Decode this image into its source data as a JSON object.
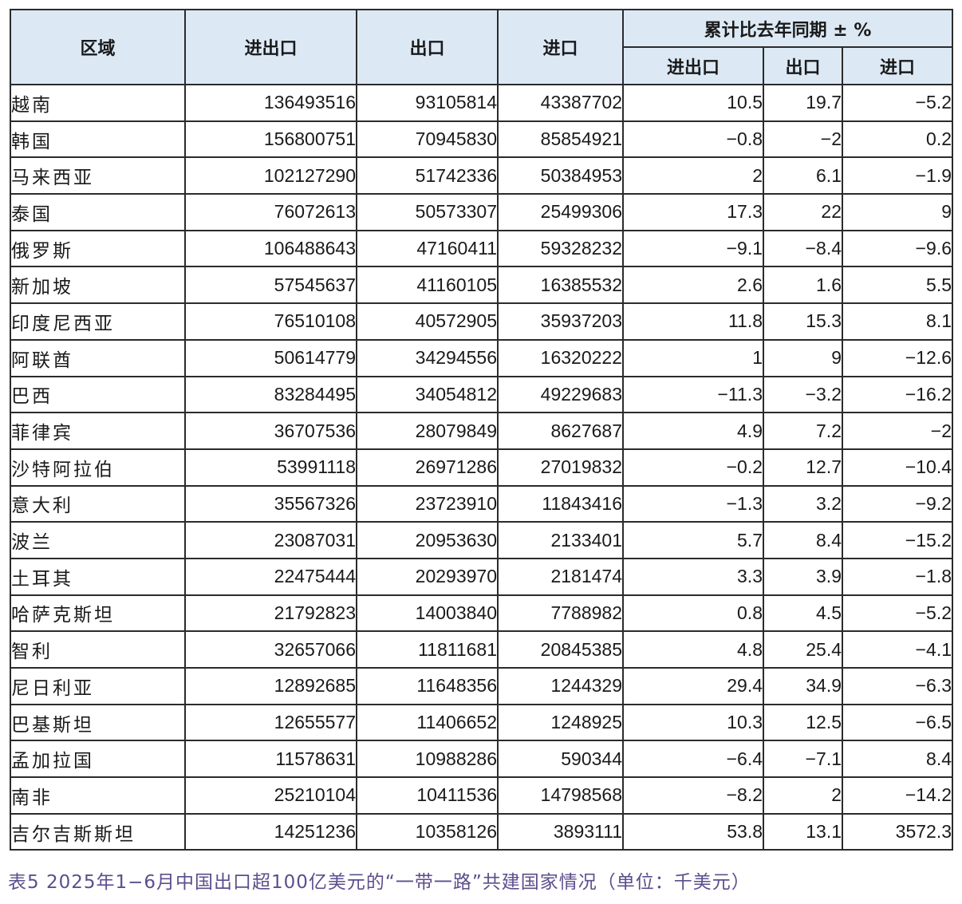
{
  "headers": {
    "region": "区域",
    "total": "进出口",
    "export": "出口",
    "import": "进口",
    "yoy_group": "累计比去年同期 ± %",
    "yoy_total": "进出口",
    "yoy_export": "出口",
    "yoy_import": "进口"
  },
  "rows": [
    {
      "region": "越南",
      "total": "136493516",
      "export": "93105814",
      "import": "43387702",
      "yoy_total": "10.5",
      "yoy_export": "19.7",
      "yoy_import": "−5.2"
    },
    {
      "region": "韩国",
      "total": "156800751",
      "export": "70945830",
      "import": "85854921",
      "yoy_total": "−0.8",
      "yoy_export": "−2",
      "yoy_import": "0.2"
    },
    {
      "region": "马来西亚",
      "total": "102127290",
      "export": "51742336",
      "import": "50384953",
      "yoy_total": "2",
      "yoy_export": "6.1",
      "yoy_import": "−1.9"
    },
    {
      "region": "泰国",
      "total": "76072613",
      "export": "50573307",
      "import": "25499306",
      "yoy_total": "17.3",
      "yoy_export": "22",
      "yoy_import": "9"
    },
    {
      "region": "俄罗斯",
      "total": "106488643",
      "export": "47160411",
      "import": "59328232",
      "yoy_total": "−9.1",
      "yoy_export": "−8.4",
      "yoy_import": "−9.6"
    },
    {
      "region": "新加坡",
      "total": "57545637",
      "export": "41160105",
      "import": "16385532",
      "yoy_total": "2.6",
      "yoy_export": "1.6",
      "yoy_import": "5.5"
    },
    {
      "region": "印度尼西亚",
      "total": "76510108",
      "export": "40572905",
      "import": "35937203",
      "yoy_total": "11.8",
      "yoy_export": "15.3",
      "yoy_import": "8.1"
    },
    {
      "region": "阿联酋",
      "total": "50614779",
      "export": "34294556",
      "import": "16320222",
      "yoy_total": "1",
      "yoy_export": "9",
      "yoy_import": "−12.6"
    },
    {
      "region": "巴西",
      "total": "83284495",
      "export": "34054812",
      "import": "49229683",
      "yoy_total": "−11.3",
      "yoy_export": "−3.2",
      "yoy_import": "−16.2"
    },
    {
      "region": "菲律宾",
      "total": "36707536",
      "export": "28079849",
      "import": "8627687",
      "yoy_total": "4.9",
      "yoy_export": "7.2",
      "yoy_import": "−2"
    },
    {
      "region": "沙特阿拉伯",
      "total": "53991118",
      "export": "26971286",
      "import": "27019832",
      "yoy_total": "−0.2",
      "yoy_export": "12.7",
      "yoy_import": "−10.4"
    },
    {
      "region": "意大利",
      "total": "35567326",
      "export": "23723910",
      "import": "11843416",
      "yoy_total": "−1.3",
      "yoy_export": "3.2",
      "yoy_import": "−9.2"
    },
    {
      "region": "波兰",
      "total": "23087031",
      "export": "20953630",
      "import": "2133401",
      "yoy_total": "5.7",
      "yoy_export": "8.4",
      "yoy_import": "−15.2"
    },
    {
      "region": "土耳其",
      "total": "22475444",
      "export": "20293970",
      "import": "2181474",
      "yoy_total": "3.3",
      "yoy_export": "3.9",
      "yoy_import": "−1.8"
    },
    {
      "region": "哈萨克斯坦",
      "total": "21792823",
      "export": "14003840",
      "import": "7788982",
      "yoy_total": "0.8",
      "yoy_export": "4.5",
      "yoy_import": "−5.2"
    },
    {
      "region": "智利",
      "total": "32657066",
      "export": "11811681",
      "import": "20845385",
      "yoy_total": "4.8",
      "yoy_export": "25.4",
      "yoy_import": "−4.1"
    },
    {
      "region": "尼日利亚",
      "total": "12892685",
      "export": "11648356",
      "import": "1244329",
      "yoy_total": "29.4",
      "yoy_export": "34.9",
      "yoy_import": "−6.3"
    },
    {
      "region": "巴基斯坦",
      "total": "12655577",
      "export": "11406652",
      "import": "1248925",
      "yoy_total": "10.3",
      "yoy_export": "12.5",
      "yoy_import": "−6.5"
    },
    {
      "region": "孟加拉国",
      "total": "11578631",
      "export": "10988286",
      "import": "590344",
      "yoy_total": "−6.4",
      "yoy_export": "−7.1",
      "yoy_import": "8.4"
    },
    {
      "region": "南非",
      "total": "25210104",
      "export": "10411536",
      "import": "14798568",
      "yoy_total": "−8.2",
      "yoy_export": "2",
      "yoy_import": "−14.2"
    },
    {
      "region": "吉尔吉斯斯坦",
      "total": "14251236",
      "export": "10358126",
      "import": "3893111",
      "yoy_total": "53.8",
      "yoy_export": "13.1",
      "yoy_import": "3572.3"
    }
  ],
  "caption": "表5 2025年1−6月中国出口超100亿美元的“一带一路”共建国家情况（单位：千美元）",
  "colors": {
    "header_bg": "#dce9f5",
    "border": "#2b2b2b",
    "caption": "#5d4e8c"
  }
}
